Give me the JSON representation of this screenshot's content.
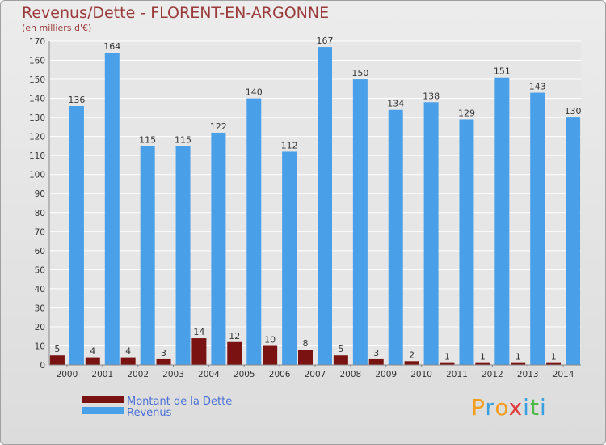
{
  "header": {
    "title": "Revenus/Dette - FLORENT-EN-ARGONNE",
    "subtitle": "(en milliers d'€)"
  },
  "logo": {
    "text": "Proxiti",
    "colors": [
      "#f59c1a",
      "#3aa0e0",
      "#e23a3a",
      "#4cb848"
    ]
  },
  "colors": {
    "dette": "#7a1212",
    "revenus": "#4aa0e8",
    "title": "#9a3a3a",
    "legend_text": "#4a6fd8"
  },
  "chart_data": {
    "type": "bar",
    "title": "Revenus/Dette - FLORENT-EN-ARGONNE",
    "subtitle": "(en milliers d'€)",
    "categories": [
      "2000",
      "2001",
      "2002",
      "2003",
      "2004",
      "2005",
      "2006",
      "2007",
      "2008",
      "2009",
      "2010",
      "2011",
      "2012",
      "2013",
      "2014"
    ],
    "series": [
      {
        "name": "Montant de la Dette",
        "values": [
          5,
          4,
          4,
          3,
          14,
          12,
          10,
          8,
          5,
          3,
          2,
          1,
          1,
          1,
          1
        ]
      },
      {
        "name": "Revenus",
        "values": [
          136,
          164,
          115,
          115,
          122,
          140,
          112,
          167,
          150,
          134,
          138,
          129,
          151,
          143,
          130
        ]
      }
    ],
    "ylim": [
      0,
      170
    ],
    "yticks": [
      0,
      10,
      20,
      30,
      40,
      50,
      60,
      70,
      80,
      90,
      100,
      110,
      120,
      130,
      140,
      150,
      160,
      170
    ],
    "grid": true,
    "legend": "bottom-left"
  }
}
